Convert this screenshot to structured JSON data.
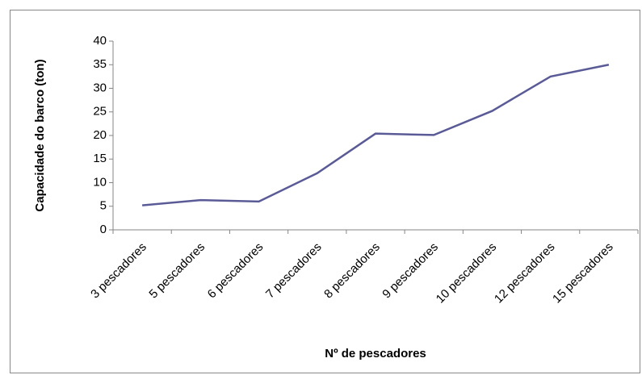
{
  "chart_data": {
    "type": "line",
    "x_label": "Nº de pescadores",
    "y_label": "Capacidade do barco (ton)",
    "categories": [
      "3 pescadores",
      "5 pescadores",
      "6 pescadores",
      "7 pescadores",
      "8 pescadores",
      "9 pescadores",
      "10 pescadores",
      "12 pescadores",
      "15 pescadores"
    ],
    "series": [
      {
        "color": "#5a5b96",
        "values": [
          5.2,
          6.3,
          6.0,
          12.0,
          20.4,
          20.1,
          25.2,
          32.5,
          35.0
        ]
      }
    ],
    "ylim": [
      0,
      40
    ],
    "yticks": [
      0,
      5,
      10,
      15,
      20,
      25,
      30,
      35,
      40
    ],
    "grid": false
  }
}
